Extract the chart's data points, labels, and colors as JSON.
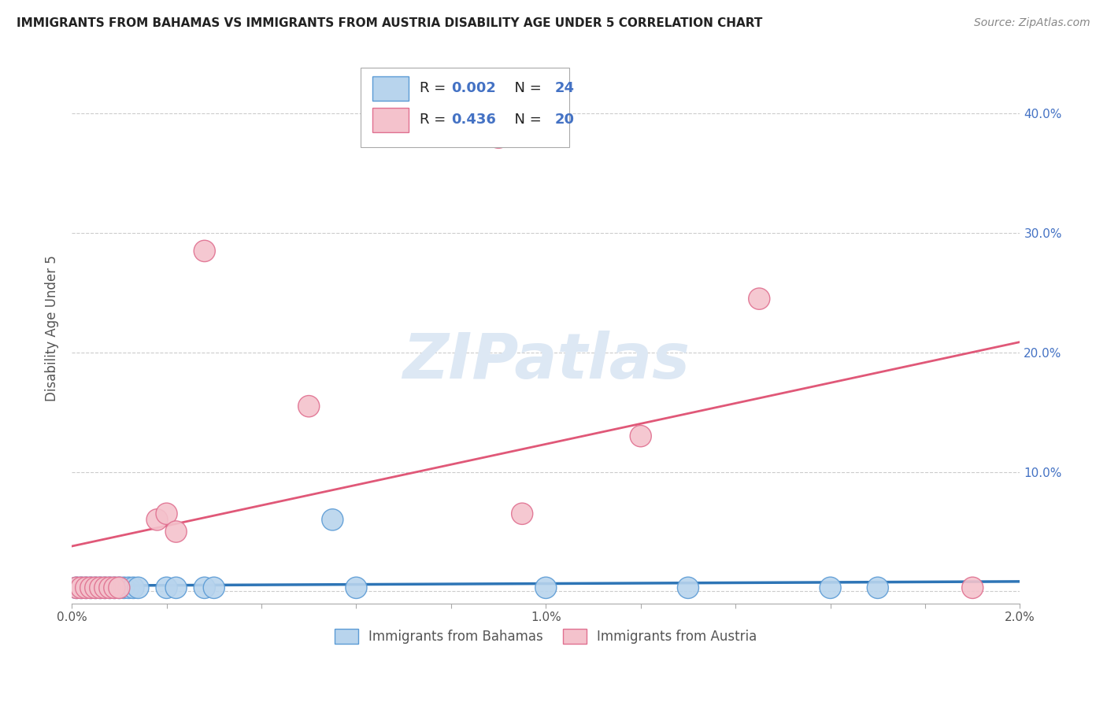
{
  "title": "IMMIGRANTS FROM BAHAMAS VS IMMIGRANTS FROM AUSTRIA DISABILITY AGE UNDER 5 CORRELATION CHART",
  "source": "Source: ZipAtlas.com",
  "ylabel": "Disability Age Under 5",
  "y_ticks": [
    0.0,
    0.1,
    0.2,
    0.3,
    0.4
  ],
  "y_tick_labels_right": [
    "",
    "10.0%",
    "20.0%",
    "30.0%",
    "40.0%"
  ],
  "xlim": [
    0.0,
    0.02
  ],
  "ylim": [
    -0.01,
    0.45
  ],
  "series1_label": "Immigrants from Bahamas",
  "series1_fill_color": "#b8d4ed",
  "series1_edge_color": "#5b9bd5",
  "series1_line_color": "#2e75b6",
  "series1_R": "0.002",
  "series1_N": "24",
  "series2_label": "Immigrants from Austria",
  "series2_fill_color": "#f4c2cc",
  "series2_edge_color": "#e07090",
  "series2_line_color": "#e05878",
  "series2_R": "0.436",
  "series2_N": "20",
  "legend_text_color": "#333333",
  "legend_val_color": "#4472c4",
  "axis_label_color": "#4472c4",
  "watermark_color": "#dde8f4",
  "bahamas_x": [
    0.0001,
    0.0002,
    0.0003,
    0.0004,
    0.0005,
    0.0006,
    0.0007,
    0.0008,
    0.0009,
    0.001,
    0.0011,
    0.0012,
    0.0013,
    0.0014,
    0.002,
    0.0022,
    0.0028,
    0.003,
    0.0055,
    0.006,
    0.01,
    0.013,
    0.016,
    0.017
  ],
  "bahamas_y": [
    0.003,
    0.003,
    0.003,
    0.003,
    0.003,
    0.003,
    0.003,
    0.003,
    0.003,
    0.003,
    0.003,
    0.003,
    0.003,
    0.003,
    0.003,
    0.003,
    0.003,
    0.003,
    0.06,
    0.003,
    0.003,
    0.003,
    0.003,
    0.003
  ],
  "austria_x": [
    0.0001,
    0.0002,
    0.0003,
    0.0004,
    0.0005,
    0.0006,
    0.0007,
    0.0008,
    0.0009,
    0.001,
    0.0018,
    0.002,
    0.0022,
    0.0028,
    0.005,
    0.009,
    0.0095,
    0.012,
    0.0145,
    0.019
  ],
  "austria_y": [
    0.003,
    0.003,
    0.003,
    0.003,
    0.003,
    0.003,
    0.003,
    0.003,
    0.003,
    0.003,
    0.06,
    0.065,
    0.05,
    0.285,
    0.155,
    0.38,
    0.065,
    0.13,
    0.245,
    0.003
  ],
  "x_tick_positions": [
    0.0,
    0.002,
    0.004,
    0.006,
    0.008,
    0.01,
    0.012,
    0.014,
    0.016,
    0.018,
    0.02
  ],
  "x_tick_labels": [
    "0.0%",
    "",
    "",
    "",
    "",
    "1.0%",
    "",
    "",
    "",
    "",
    "2.0%"
  ],
  "watermark": "ZIPatlas"
}
